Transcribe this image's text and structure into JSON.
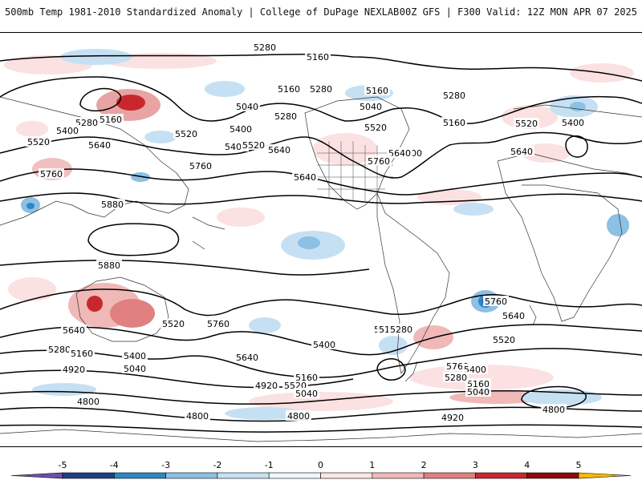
{
  "header": {
    "title_left": "500mb Temp 1981-2010 Standardized Anomaly | College of DuPage NEXLAB",
    "title_right": "00Z GFS | F300 Valid: 12Z MON APR 07 2025"
  },
  "map": {
    "contour_labels": [
      "5160",
      "5040",
      "5280",
      "5160",
      "5520",
      "5400",
      "5640",
      "5760",
      "5280",
      "5400",
      "5640",
      "5520",
      "5880",
      "5160",
      "5040",
      "5280",
      "5160",
      "5520",
      "5400",
      "5640",
      "5760",
      "5640",
      "5520",
      "5400",
      "5280",
      "5160",
      "5280",
      "5520",
      "5400",
      "5640",
      "5760",
      "5880",
      "5520",
      "5760",
      "5640",
      "5280",
      "5160",
      "5400",
      "5040",
      "4920",
      "4800",
      "4800",
      "5640",
      "5520",
      "5760",
      "5520",
      "5400",
      "5160",
      "5280",
      "5040",
      "5160",
      "4920",
      "4800",
      "4920",
      "5760",
      "5640",
      "5520",
      "5400",
      "5280",
      "5160",
      "5040",
      "4800"
    ]
  },
  "colorbar": {
    "tick_labels": [
      "-5",
      "-4",
      "-3",
      "-2",
      "-1",
      "0",
      "1",
      "2",
      "3",
      "4",
      "5"
    ],
    "colors": [
      "#6e4fa8",
      "#1f3f82",
      "#2f86c4",
      "#8cc0e4",
      "#c6e0f3",
      "#eef6fc",
      "#fbe6e6",
      "#f1b8b8",
      "#e08080",
      "#c8282d",
      "#8b0a0f",
      "#f5b800"
    ]
  }
}
